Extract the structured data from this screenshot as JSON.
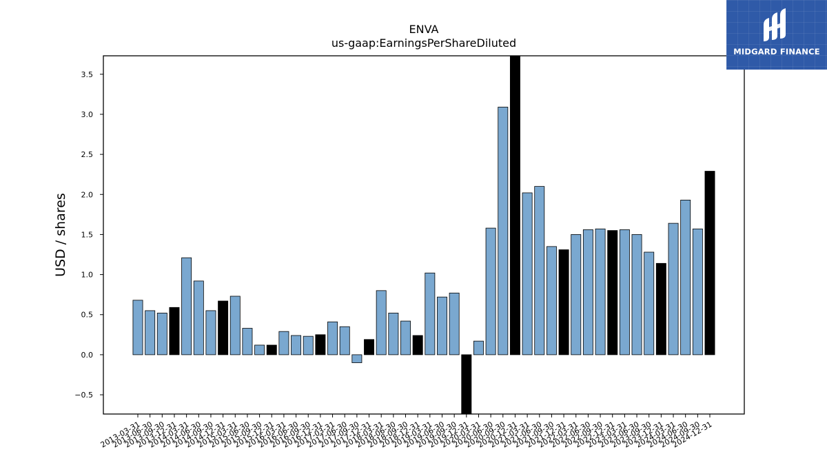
{
  "branding": {
    "logo_text": "MIDGARD FINANCE",
    "logo_color": "#2f5aa8",
    "logo_icon": "midgard-finance-logo-icon"
  },
  "chart_data": {
    "type": "bar",
    "title": "ENVA",
    "subtitle": "us-gaap:EarningsPerShareDiluted",
    "xlabel": "",
    "ylabel": "USD / shares",
    "ylim": [
      -0.74,
      3.73
    ],
    "yticks": [
      -0.5,
      0.0,
      0.5,
      1.0,
      1.5,
      2.0,
      2.5,
      3.0,
      3.5
    ],
    "ytick_labels": [
      "−0.5",
      "0.0",
      "0.5",
      "1.0",
      "1.5",
      "2.0",
      "2.5",
      "3.0",
      "3.5"
    ],
    "grid": false,
    "colors": {
      "quarter": "#7aa8d0",
      "year_end": "#000000",
      "edge": "#000000"
    },
    "categories": [
      "2013-03-31",
      "2013-06-30",
      "2013-09-30",
      "2013-12-31",
      "2014-03-31",
      "2014-06-30",
      "2014-09-30",
      "2014-12-31",
      "2015-03-31",
      "2015-06-30",
      "2015-09-30",
      "2015-12-31",
      "2016-03-31",
      "2016-06-30",
      "2016-09-30",
      "2016-12-31",
      "2017-03-31",
      "2017-06-30",
      "2017-09-30",
      "2017-12-31",
      "2018-03-31",
      "2018-06-30",
      "2018-09-30",
      "2018-12-31",
      "2019-03-31",
      "2019-06-30",
      "2019-09-30",
      "2019-12-31",
      "2020-03-31",
      "2020-06-30",
      "2020-09-30",
      "2020-12-31",
      "2021-03-31",
      "2021-06-30",
      "2021-09-30",
      "2021-12-31",
      "2022-03-31",
      "2022-06-30",
      "2022-09-30",
      "2022-12-31",
      "2023-03-31",
      "2023-06-30",
      "2023-09-30",
      "2023-12-31",
      "2024-03-31",
      "2024-06-30",
      "2024-09-30",
      "2024-12-31"
    ],
    "values": [
      0.68,
      0.55,
      0.52,
      0.59,
      1.21,
      0.92,
      0.55,
      0.67,
      0.73,
      0.33,
      0.12,
      0.12,
      0.29,
      0.24,
      0.23,
      0.25,
      0.41,
      0.35,
      -0.1,
      0.19,
      0.8,
      0.52,
      0.42,
      0.24,
      1.02,
      0.72,
      0.77,
      -0.74,
      0.17,
      1.58,
      3.09,
      3.73,
      2.02,
      2.1,
      1.35,
      1.31,
      1.5,
      1.56,
      1.57,
      1.55,
      1.56,
      1.5,
      1.28,
      1.14,
      1.64,
      1.93,
      1.57,
      2.29
    ],
    "year_end": [
      false,
      false,
      false,
      true,
      false,
      false,
      false,
      true,
      false,
      false,
      false,
      true,
      false,
      false,
      false,
      true,
      false,
      false,
      false,
      true,
      false,
      false,
      false,
      true,
      false,
      false,
      false,
      true,
      false,
      false,
      false,
      true,
      false,
      false,
      false,
      true,
      false,
      false,
      false,
      true,
      false,
      false,
      false,
      true,
      false,
      false,
      false,
      true
    ]
  }
}
